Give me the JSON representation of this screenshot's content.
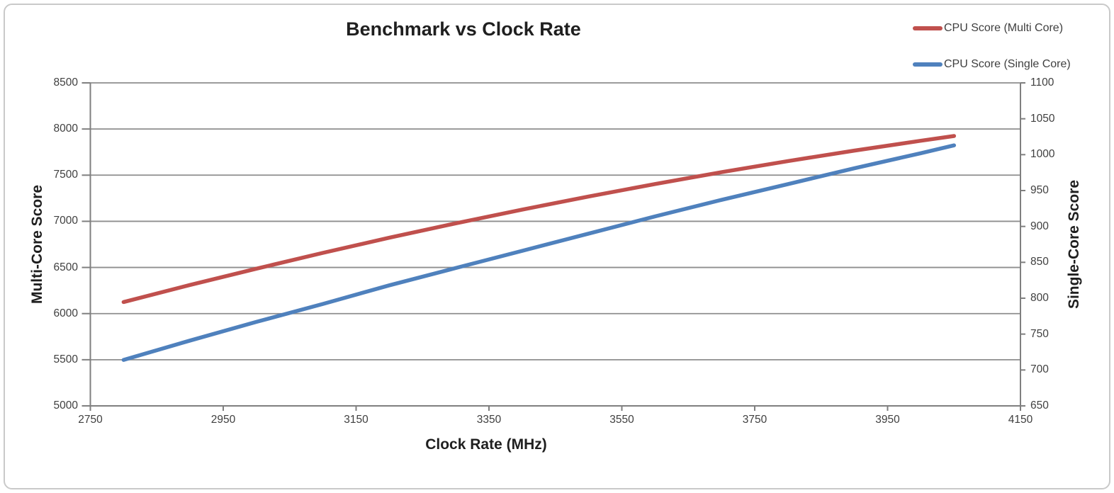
{
  "chart_data": {
    "type": "line",
    "title": "Benchmark vs Clock Rate",
    "xlabel": "Clock Rate (MHz)",
    "ylabel_left": "Multi-Core Score",
    "ylabel_right": "Single-Core Score",
    "xlim": [
      2750,
      4150
    ],
    "xtick_step": 200,
    "ylim_left": [
      5000,
      8500
    ],
    "ytick_step_left": 500,
    "ylim_right": [
      650,
      1100
    ],
    "ytick_step_right": 50,
    "grid": "horizontal-major-only",
    "legend_position": "top-right",
    "x": [
      2800,
      2900,
      3000,
      3100,
      3200,
      3300,
      3400,
      3500,
      3600,
      3700,
      3800,
      3900,
      4000,
      4050
    ],
    "series": [
      {
        "name": "CPU Score (Multi Core)",
        "axis": "left",
        "color": "#C0504D",
        "values": [
          6125,
          6310,
          6487,
          6658,
          6822,
          6978,
          7127,
          7269,
          7404,
          7532,
          7653,
          7766,
          7873,
          7924
        ]
      },
      {
        "name": "CPU Score (Single Core)",
        "axis": "right",
        "color": "#4F81BD",
        "values": [
          714,
          741,
          767,
          792,
          818,
          842,
          866,
          890,
          914,
          937,
          959,
          981,
          1002,
          1013
        ]
      }
    ]
  },
  "colors": {
    "gridline": "#8e8e8e",
    "axis": "#7f7f7f",
    "tick_text": "#3f3f3f",
    "title_text": "#1f1f1f",
    "frame_border": "#c9c9c9",
    "background": "#ffffff"
  }
}
